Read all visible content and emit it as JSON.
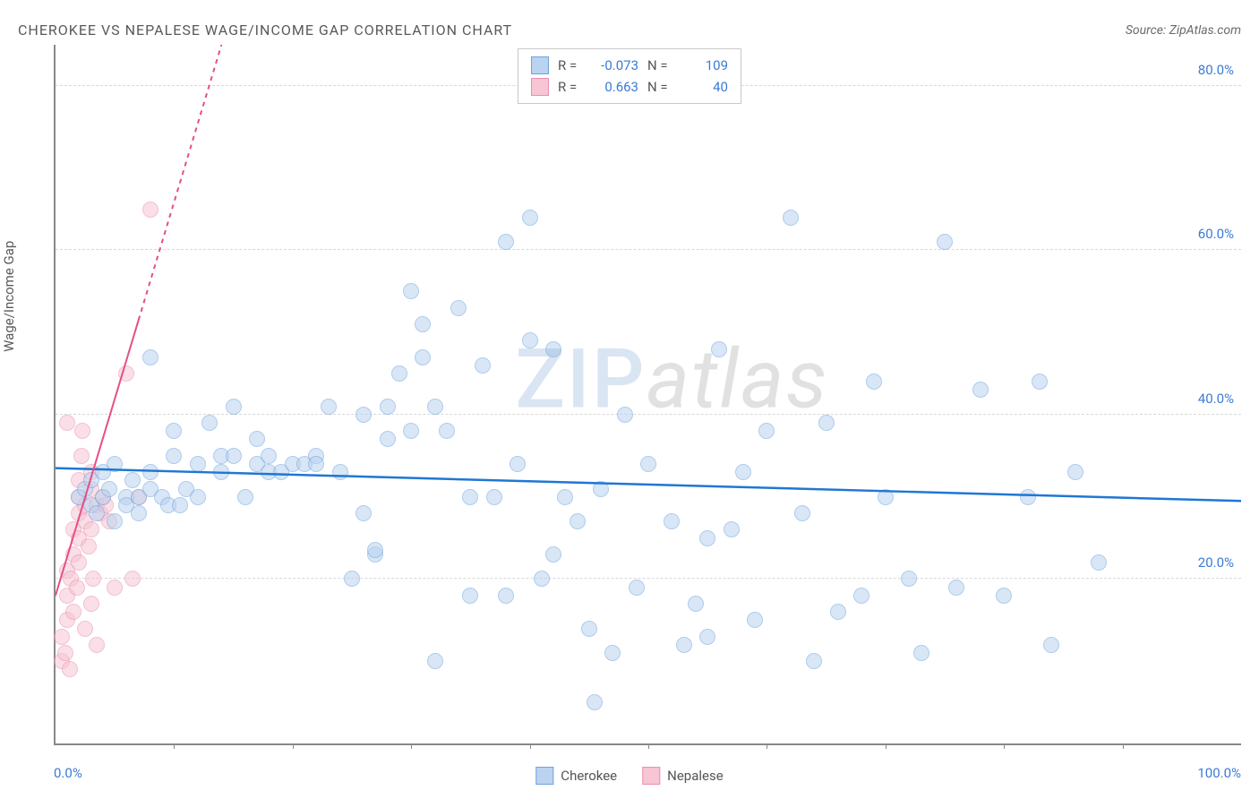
{
  "title": "CHEROKEE VS NEPALESE WAGE/INCOME GAP CORRELATION CHART",
  "source_label": "Source:",
  "source_name": "ZipAtlas.com",
  "ylabel": "Wage/Income Gap",
  "watermark_left": "ZIP",
  "watermark_right": "atlas",
  "chart": {
    "type": "scatter",
    "background_color": "#ffffff",
    "grid_color": "#d8d8d8",
    "axis_color": "#888888",
    "tick_label_color": "#3b7bd6",
    "title_color": "#5a5a5a",
    "title_fontsize": 16,
    "label_fontsize": 15,
    "marker_radius": 9,
    "marker_opacity": 0.55,
    "xlim": [
      0,
      100
    ],
    "ylim": [
      0,
      85
    ],
    "xtick_step": 10,
    "yticks": [
      20,
      40,
      60,
      80
    ],
    "xlabel_min": "0.0%",
    "xlabel_max": "100.0%",
    "ytick_labels": [
      "20.0%",
      "40.0%",
      "60.0%",
      "80.0%"
    ]
  },
  "series": [
    {
      "name": "Cherokee",
      "color_fill": "#b9d3f0",
      "color_stroke": "#6fa3de",
      "trend_color": "#1f77d4",
      "trend_width": 2.5,
      "R": "-0.073",
      "N": "109",
      "trend": {
        "y_at_x0": 33.5,
        "y_at_x100": 29.5
      },
      "points": [
        [
          2,
          30
        ],
        [
          2.5,
          31
        ],
        [
          3,
          29
        ],
        [
          3,
          32
        ],
        [
          3.5,
          28
        ],
        [
          4,
          33
        ],
        [
          4,
          30
        ],
        [
          4.5,
          31
        ],
        [
          5,
          27
        ],
        [
          5,
          34
        ],
        [
          6,
          30
        ],
        [
          6,
          29
        ],
        [
          6.5,
          32
        ],
        [
          7,
          30
        ],
        [
          7,
          28
        ],
        [
          8,
          31
        ],
        [
          8,
          33
        ],
        [
          8,
          47
        ],
        [
          9,
          30
        ],
        [
          9.5,
          29
        ],
        [
          10,
          35
        ],
        [
          10,
          38
        ],
        [
          10.5,
          29
        ],
        [
          11,
          31
        ],
        [
          12,
          34
        ],
        [
          12,
          30
        ],
        [
          13,
          39
        ],
        [
          14,
          35
        ],
        [
          14,
          33
        ],
        [
          15,
          41
        ],
        [
          15,
          35
        ],
        [
          16,
          30
        ],
        [
          17,
          34
        ],
        [
          17,
          37
        ],
        [
          18,
          35
        ],
        [
          18,
          33
        ],
        [
          19,
          33
        ],
        [
          20,
          34
        ],
        [
          21,
          34
        ],
        [
          22,
          35
        ],
        [
          22,
          34
        ],
        [
          23,
          41
        ],
        [
          24,
          33
        ],
        [
          25,
          20
        ],
        [
          26,
          40
        ],
        [
          26,
          28
        ],
        [
          27,
          23
        ],
        [
          27,
          23.5
        ],
        [
          28,
          37
        ],
        [
          28,
          41
        ],
        [
          29,
          45
        ],
        [
          30,
          38
        ],
        [
          30,
          55
        ],
        [
          31,
          47
        ],
        [
          31,
          51
        ],
        [
          32,
          10
        ],
        [
          32,
          41
        ],
        [
          33,
          38
        ],
        [
          34,
          53
        ],
        [
          35,
          30
        ],
        [
          35,
          18
        ],
        [
          36,
          46
        ],
        [
          37,
          30
        ],
        [
          38,
          61
        ],
        [
          38,
          18
        ],
        [
          39,
          34
        ],
        [
          40,
          49
        ],
        [
          40,
          64
        ],
        [
          41,
          20
        ],
        [
          42,
          23
        ],
        [
          42,
          48
        ],
        [
          43,
          30
        ],
        [
          44,
          27
        ],
        [
          45,
          14
        ],
        [
          45.5,
          5
        ],
        [
          46,
          31
        ],
        [
          47,
          11
        ],
        [
          48,
          40
        ],
        [
          49,
          19
        ],
        [
          50,
          34
        ],
        [
          52,
          27
        ],
        [
          53,
          12
        ],
        [
          54,
          17
        ],
        [
          55,
          25
        ],
        [
          55,
          13
        ],
        [
          56,
          48
        ],
        [
          57,
          26
        ],
        [
          58,
          33
        ],
        [
          59,
          15
        ],
        [
          60,
          38
        ],
        [
          62,
          64
        ],
        [
          63,
          28
        ],
        [
          64,
          10
        ],
        [
          65,
          39
        ],
        [
          66,
          16
        ],
        [
          68,
          18
        ],
        [
          69,
          44
        ],
        [
          70,
          30
        ],
        [
          72,
          20
        ],
        [
          73,
          11
        ],
        [
          75,
          61
        ],
        [
          76,
          19
        ],
        [
          78,
          43
        ],
        [
          80,
          18
        ],
        [
          82,
          30
        ],
        [
          83,
          44
        ],
        [
          84,
          12
        ],
        [
          86,
          33
        ],
        [
          88,
          22
        ]
      ]
    },
    {
      "name": "Nepalese",
      "color_fill": "#f7c5d3",
      "color_stroke": "#e98fb0",
      "trend_color": "#e64e87",
      "trend_width": 2,
      "trend_dash_after_x": 7,
      "R": "0.663",
      "N": "40",
      "trend": {
        "y_at_x0": 18,
        "y_at_x14": 85
      },
      "points": [
        [
          0.5,
          10
        ],
        [
          0.5,
          13
        ],
        [
          0.8,
          11
        ],
        [
          1,
          15
        ],
        [
          1,
          18
        ],
        [
          1,
          21
        ],
        [
          1.2,
          9
        ],
        [
          1.3,
          20
        ],
        [
          1.5,
          16
        ],
        [
          1.5,
          23
        ],
        [
          1.5,
          26
        ],
        [
          1.8,
          19
        ],
        [
          2,
          22
        ],
        [
          2,
          25
        ],
        [
          2,
          28
        ],
        [
          2,
          30
        ],
        [
          2,
          32
        ],
        [
          2.2,
          35
        ],
        [
          2.3,
          38
        ],
        [
          2.5,
          14
        ],
        [
          2.5,
          27
        ],
        [
          2.5,
          29
        ],
        [
          2.8,
          24
        ],
        [
          3,
          17
        ],
        [
          3,
          26
        ],
        [
          3,
          31
        ],
        [
          3,
          33
        ],
        [
          3.2,
          20
        ],
        [
          3.5,
          12
        ],
        [
          3.5,
          29
        ],
        [
          3.8,
          28
        ],
        [
          4,
          30
        ],
        [
          4.2,
          29
        ],
        [
          4.5,
          27
        ],
        [
          5,
          19
        ],
        [
          6,
          45
        ],
        [
          6.5,
          20
        ],
        [
          7,
          30
        ],
        [
          8,
          65
        ],
        [
          1,
          39
        ]
      ]
    }
  ],
  "legend_stats": {
    "R_label": "R =",
    "N_label": "N ="
  },
  "legend_bottom": [
    {
      "label": "Cherokee"
    },
    {
      "label": "Nepalese"
    }
  ]
}
